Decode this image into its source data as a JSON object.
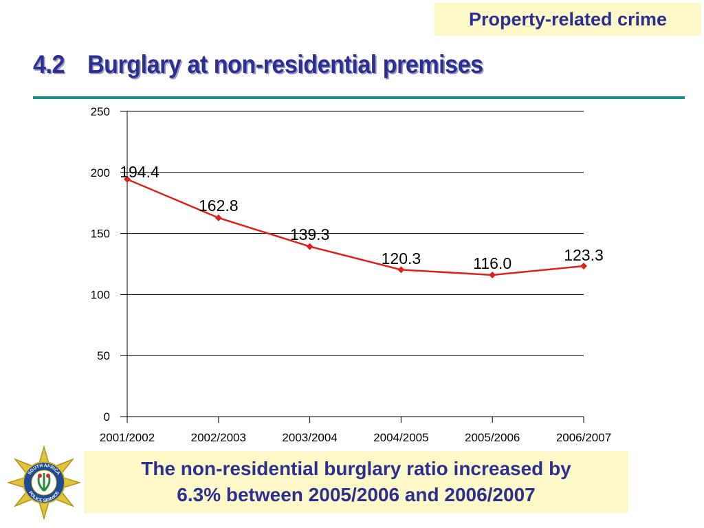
{
  "header": {
    "section_tag": "Property-related crime",
    "title_number": "4.2",
    "title_text": "Burglary at non-residential premises"
  },
  "caption": {
    "line1": "The non-residential burglary ratio increased by",
    "line2": "6.3% between 2005/2006 and 2006/2007"
  },
  "logo": {
    "icon": "police-star-badge-icon",
    "text_top": "SOUTH AFRICA",
    "text_bottom": "POLICE SERVICE"
  },
  "colors": {
    "accent_text": "#2b2f8f",
    "highlight_box": "#fdf8c8",
    "rule": "#1a8f86",
    "series": "#e0201b"
  },
  "chart_data": {
    "type": "line",
    "title": "",
    "xlabel": "",
    "ylabel": "",
    "categories": [
      "2001/2002",
      "2002/2003",
      "2003/2004",
      "2004/2005",
      "2005/2006",
      "2006/2007"
    ],
    "series": [
      {
        "values": [
          194.4,
          162.8,
          139.3,
          120.3,
          116.0,
          123.3
        ]
      }
    ],
    "data_labels": [
      "194.4",
      "162.8",
      "139.3",
      "120.3",
      "116.0",
      "123.3"
    ],
    "yticks": [
      0,
      50,
      100,
      150,
      200,
      250
    ],
    "ylim": [
      0,
      250
    ],
    "grid": "horizontal",
    "legend": "none",
    "marker": "diamond"
  }
}
